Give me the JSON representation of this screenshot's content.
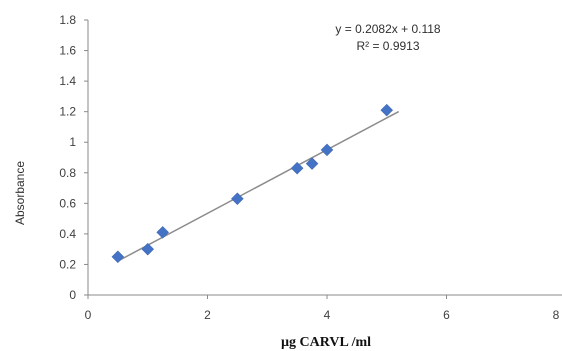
{
  "chart_data": {
    "type": "scatter",
    "xlabel": "µg CARVL /ml",
    "ylabel": "Absorbance",
    "xlim": [
      0,
      8
    ],
    "ylim": [
      0,
      1.8
    ],
    "x_ticks": [
      "0",
      "2",
      "4",
      "6",
      "8"
    ],
    "y_ticks": [
      "0",
      "0.2",
      "0.4",
      "0.6",
      "0.8",
      "1",
      "1.2",
      "1.4",
      "1.6",
      "1.8"
    ],
    "grid": false,
    "marker_color": "#4472C4",
    "trendline_color": "#8C8C8C",
    "points": [
      {
        "x": 0.5,
        "y": 0.25
      },
      {
        "x": 1.0,
        "y": 0.3
      },
      {
        "x": 1.25,
        "y": 0.41
      },
      {
        "x": 2.5,
        "y": 0.63
      },
      {
        "x": 3.5,
        "y": 0.83
      },
      {
        "x": 3.75,
        "y": 0.86
      },
      {
        "x": 4.0,
        "y": 0.95
      },
      {
        "x": 5.0,
        "y": 1.21
      }
    ],
    "trendline": {
      "slope": 0.2082,
      "intercept": 0.118,
      "x_range": [
        0.5,
        5.2
      ]
    },
    "annotations": {
      "equation": "y = 0.2082x + 0.118",
      "r_squared": "R² = 0.9913"
    }
  }
}
